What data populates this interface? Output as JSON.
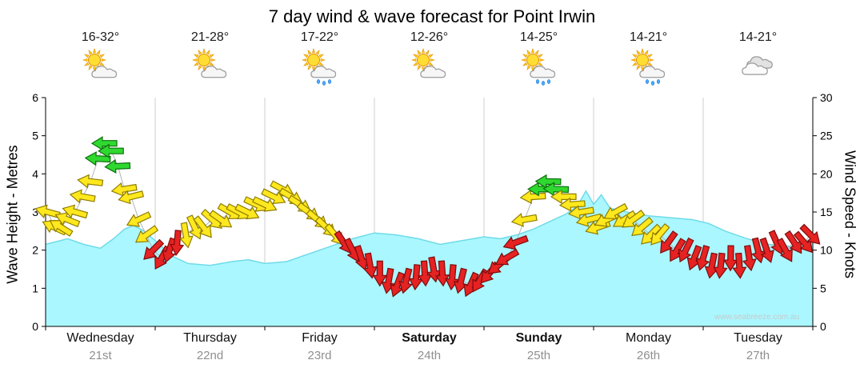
{
  "title": "7 day wind & wave forecast for Point Irwin",
  "watermark": "www.seabreeze.com.au",
  "left_axis": {
    "label": "Wave Height - Metres",
    "min": 0,
    "max": 6,
    "ticks": [
      0,
      1,
      2,
      3,
      4,
      5,
      6
    ]
  },
  "right_axis": {
    "label": "Wind Speed - Knots",
    "min": 0,
    "max": 30,
    "ticks": [
      0,
      5,
      10,
      15,
      20,
      25,
      30
    ]
  },
  "days": [
    {
      "name": "Wednesday",
      "date": "21st",
      "temp": "16-32°",
      "icon": "partly-cloudy",
      "bold": false
    },
    {
      "name": "Thursday",
      "date": "22nd",
      "temp": "21-28°",
      "icon": "partly-cloudy",
      "bold": false
    },
    {
      "name": "Friday",
      "date": "23rd",
      "temp": "17-22°",
      "icon": "partly-cloudy-rain",
      "bold": false
    },
    {
      "name": "Saturday",
      "date": "24th",
      "temp": "12-26°",
      "icon": "partly-cloudy",
      "bold": true
    },
    {
      "name": "Sunday",
      "date": "25th",
      "temp": "14-25°",
      "icon": "partly-cloudy-rain",
      "bold": true
    },
    {
      "name": "Monday",
      "date": "26th",
      "temp": "14-21°",
      "icon": "partly-cloudy-rain",
      "bold": false
    },
    {
      "name": "Tuesday",
      "date": "27th",
      "temp": "14-21°",
      "icon": "cloudy",
      "bold": false
    }
  ],
  "chart_data": {
    "type": "area",
    "title": "7 day wind & wave forecast for Point Irwin",
    "x_axis": {
      "unit": "days",
      "range": [
        0,
        7
      ],
      "categories": [
        "Wednesday 21st",
        "Thursday 22nd",
        "Friday 23rd",
        "Saturday 24th",
        "Sunday 25th",
        "Monday 26th",
        "Tuesday 27th"
      ]
    },
    "ylabel_left": "Wave Height - Metres",
    "ylabel_right": "Wind Speed - Knots",
    "ylim_left": [
      0,
      6
    ],
    "ylim_right": [
      0,
      30
    ],
    "grid": "vertical-day-boundaries",
    "wave_height_m": {
      "series": "Wave Height (m)",
      "point_format": [
        "day_offset",
        "metres"
      ],
      "points": [
        [
          0,
          2.15
        ],
        [
          0.2,
          2.3
        ],
        [
          0.35,
          2.15
        ],
        [
          0.5,
          2.05
        ],
        [
          0.62,
          2.3
        ],
        [
          0.72,
          2.55
        ],
        [
          0.8,
          2.65
        ],
        [
          0.9,
          2.5
        ],
        [
          1.0,
          2.25
        ],
        [
          1.15,
          1.85
        ],
        [
          1.3,
          1.65
        ],
        [
          1.5,
          1.6
        ],
        [
          1.7,
          1.7
        ],
        [
          1.85,
          1.75
        ],
        [
          2.0,
          1.65
        ],
        [
          2.2,
          1.7
        ],
        [
          2.4,
          1.9
        ],
        [
          2.6,
          2.1
        ],
        [
          2.8,
          2.3
        ],
        [
          3.0,
          2.45
        ],
        [
          3.2,
          2.4
        ],
        [
          3.4,
          2.3
        ],
        [
          3.6,
          2.15
        ],
        [
          3.8,
          2.25
        ],
        [
          4.0,
          2.35
        ],
        [
          4.15,
          2.3
        ],
        [
          4.3,
          2.4
        ],
        [
          4.45,
          2.55
        ],
        [
          4.6,
          2.75
        ],
        [
          4.75,
          2.95
        ],
        [
          4.85,
          3.15
        ],
        [
          4.93,
          3.55
        ],
        [
          5.0,
          3.2
        ],
        [
          5.07,
          3.45
        ],
        [
          5.15,
          3.1
        ],
        [
          5.3,
          3.0
        ],
        [
          5.5,
          2.9
        ],
        [
          5.7,
          2.85
        ],
        [
          5.9,
          2.8
        ],
        [
          6.05,
          2.7
        ],
        [
          6.2,
          2.5
        ],
        [
          6.4,
          2.3
        ],
        [
          6.6,
          2.15
        ],
        [
          6.8,
          2.1
        ],
        [
          6.9,
          2.2
        ],
        [
          7.0,
          2.3
        ]
      ]
    },
    "wind_knots": {
      "series": "Wind Speed (knots)",
      "point_format": [
        "day_offset",
        "knots",
        "color",
        "direction_deg"
      ],
      "points": [
        [
          0.02,
          15,
          "Y",
          195
        ],
        [
          0.08,
          13,
          "Y",
          205
        ],
        [
          0.14,
          13,
          "Y",
          212
        ],
        [
          0.2,
          14,
          "Y",
          202
        ],
        [
          0.27,
          15,
          "Y",
          196
        ],
        [
          0.34,
          17,
          "Y",
          190
        ],
        [
          0.41,
          19,
          "Y",
          187
        ],
        [
          0.48,
          22,
          "G",
          183
        ],
        [
          0.54,
          24,
          "G",
          180
        ],
        [
          0.6,
          23,
          "G",
          180
        ],
        [
          0.66,
          21,
          "G",
          177
        ],
        [
          0.72,
          18,
          "Y",
          171
        ],
        [
          0.78,
          17,
          "Y",
          166
        ],
        [
          0.85,
          14,
          "Y",
          155
        ],
        [
          0.92,
          12,
          "Y",
          145
        ],
        [
          0.98,
          10,
          "R",
          135
        ],
        [
          1.06,
          9,
          "R",
          120
        ],
        [
          1.13,
          10,
          "R",
          108
        ],
        [
          1.2,
          11,
          "R",
          95
        ],
        [
          1.28,
          12,
          "Y",
          80
        ],
        [
          1.36,
          13,
          "Y",
          65
        ],
        [
          1.44,
          13,
          "Y",
          52
        ],
        [
          1.52,
          14,
          "Y",
          42
        ],
        [
          1.6,
          14,
          "Y",
          35
        ],
        [
          1.68,
          15,
          "Y",
          30
        ],
        [
          1.76,
          15,
          "Y",
          28
        ],
        [
          1.84,
          15,
          "Y",
          26
        ],
        [
          1.92,
          16,
          "Y",
          25
        ],
        [
          2.0,
          16,
          "Y",
          25
        ],
        [
          2.08,
          17,
          "Y",
          26
        ],
        [
          2.16,
          18,
          "Y",
          28
        ],
        [
          2.24,
          17,
          "Y",
          30
        ],
        [
          2.32,
          16,
          "Y",
          33
        ],
        [
          2.4,
          15,
          "Y",
          36
        ],
        [
          2.48,
          14,
          "Y",
          40
        ],
        [
          2.56,
          13,
          "Y",
          44
        ],
        [
          2.64,
          12,
          "Y",
          50
        ],
        [
          2.72,
          11,
          "R",
          56
        ],
        [
          2.8,
          10,
          "R",
          63
        ],
        [
          2.88,
          9,
          "R",
          72
        ],
        [
          2.96,
          8,
          "R",
          80
        ],
        [
          3.05,
          7,
          "R",
          90
        ],
        [
          3.13,
          6,
          "R",
          100
        ],
        [
          3.21,
          5.5,
          "R",
          110
        ],
        [
          3.29,
          6,
          "R",
          104
        ],
        [
          3.38,
          6.5,
          "R",
          95
        ],
        [
          3.46,
          7,
          "R",
          86
        ],
        [
          3.54,
          7.5,
          "R",
          80
        ],
        [
          3.62,
          7,
          "R",
          86
        ],
        [
          3.71,
          6.5,
          "R",
          95
        ],
        [
          3.79,
          6,
          "R",
          104
        ],
        [
          3.88,
          5.5,
          "R",
          114
        ],
        [
          3.96,
          6,
          "R",
          121
        ],
        [
          4.05,
          7,
          "R",
          130
        ],
        [
          4.13,
          8,
          "R",
          140
        ],
        [
          4.21,
          9,
          "R",
          150
        ],
        [
          4.29,
          11,
          "R",
          160
        ],
        [
          4.37,
          14,
          "Y",
          170
        ],
        [
          4.45,
          17,
          "Y",
          176
        ],
        [
          4.52,
          18,
          "G",
          180
        ],
        [
          4.59,
          19,
          "G",
          181
        ],
        [
          4.66,
          18,
          "G",
          182
        ],
        [
          4.73,
          17,
          "Y",
          180
        ],
        [
          4.81,
          16,
          "Y",
          176
        ],
        [
          4.89,
          15,
          "Y",
          171
        ],
        [
          4.96,
          14,
          "Y",
          166
        ],
        [
          5.04,
          13,
          "Y",
          161
        ],
        [
          5.12,
          14,
          "Y",
          156
        ],
        [
          5.2,
          15,
          "Y",
          151
        ],
        [
          5.28,
          14,
          "Y",
          148
        ],
        [
          5.36,
          14,
          "Y",
          144
        ],
        [
          5.44,
          13,
          "Y",
          140
        ],
        [
          5.52,
          12,
          "Y",
          135
        ],
        [
          5.6,
          12,
          "Y",
          130
        ],
        [
          5.68,
          11,
          "R",
          126
        ],
        [
          5.76,
          10,
          "R",
          121
        ],
        [
          5.84,
          10,
          "R",
          116
        ],
        [
          5.92,
          9,
          "R",
          111
        ],
        [
          6.0,
          9,
          "R",
          106
        ],
        [
          6.08,
          8,
          "R",
          101
        ],
        [
          6.16,
          8,
          "R",
          96
        ],
        [
          6.25,
          9,
          "R",
          91
        ],
        [
          6.33,
          8,
          "R",
          86
        ],
        [
          6.42,
          9,
          "R",
          81
        ],
        [
          6.5,
          10,
          "R",
          76
        ],
        [
          6.58,
          10,
          "R",
          71
        ],
        [
          6.67,
          11,
          "R",
          66
        ],
        [
          6.75,
          10,
          "R",
          61
        ],
        [
          6.83,
          11,
          "R",
          56
        ],
        [
          6.92,
          11,
          "R",
          50
        ],
        [
          6.98,
          12,
          "R",
          45
        ]
      ]
    },
    "colors": {
      "wave_fill": "#aaf7ff",
      "wave_line": "#6fdbe8",
      "wind_green": "#2fd82f",
      "wind_yellow": "#ffe81e",
      "wind_red": "#e62222",
      "grid": "#cfcfcf",
      "axis": "#000000"
    },
    "legend": "none"
  }
}
